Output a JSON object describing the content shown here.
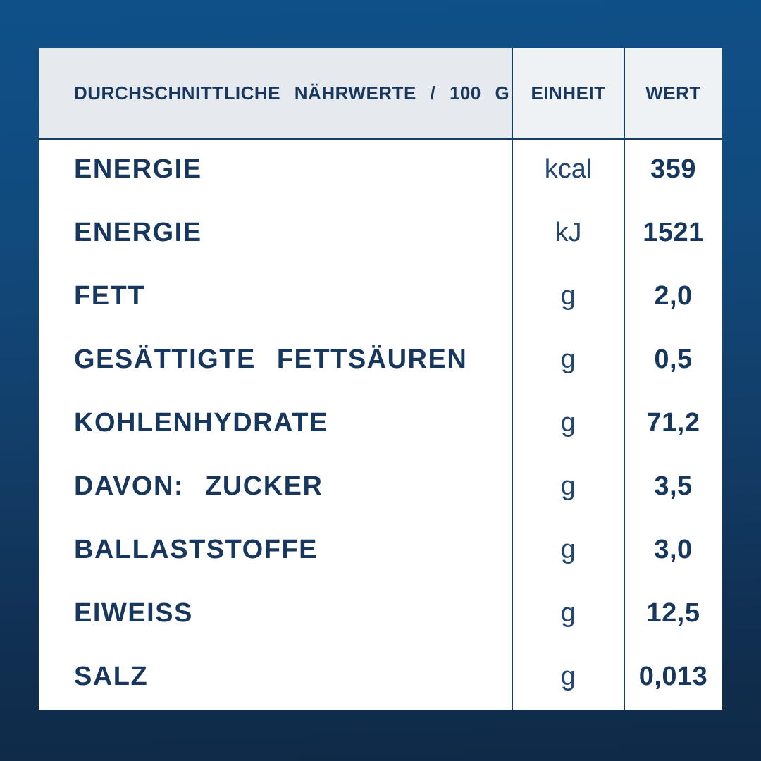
{
  "colors": {
    "background_top": "#0F5089",
    "background_bottom": "#0F2A47",
    "card_bg": "#FFFFFF",
    "header_cell_bg": "#E6EAEE",
    "header_cell_bg_light": "#EFF2F5",
    "divider": "#1B3C62",
    "text_navy": "#17375F",
    "unit_navy": "#234671"
  },
  "table": {
    "header": {
      "nutrients": "DURCHSCHNITTLICHE NÄHRWERTE / 100 G",
      "unit": "EINHEIT",
      "value": "WERT"
    },
    "rows": [
      {
        "label": "ENERGIE",
        "unit": "kcal",
        "value": "359"
      },
      {
        "label": "ENERGIE",
        "unit": "kJ",
        "value": "1521"
      },
      {
        "label": "FETT",
        "unit": "g",
        "value": "2,0"
      },
      {
        "label": "GESÄTTIGTE FETTSÄUREN",
        "unit": "g",
        "value": "0,5"
      },
      {
        "label": "KOHLENHYDRATE",
        "unit": "g",
        "value": "71,2"
      },
      {
        "label": "DAVON: ZUCKER",
        "unit": "g",
        "value": "3,5"
      },
      {
        "label": "BALLASTSTOFFE",
        "unit": "g",
        "value": "3,0"
      },
      {
        "label": "EIWEISS",
        "unit": "g",
        "value": "12,5"
      },
      {
        "label": "SALZ",
        "unit": "g",
        "value": "0,013"
      }
    ]
  }
}
